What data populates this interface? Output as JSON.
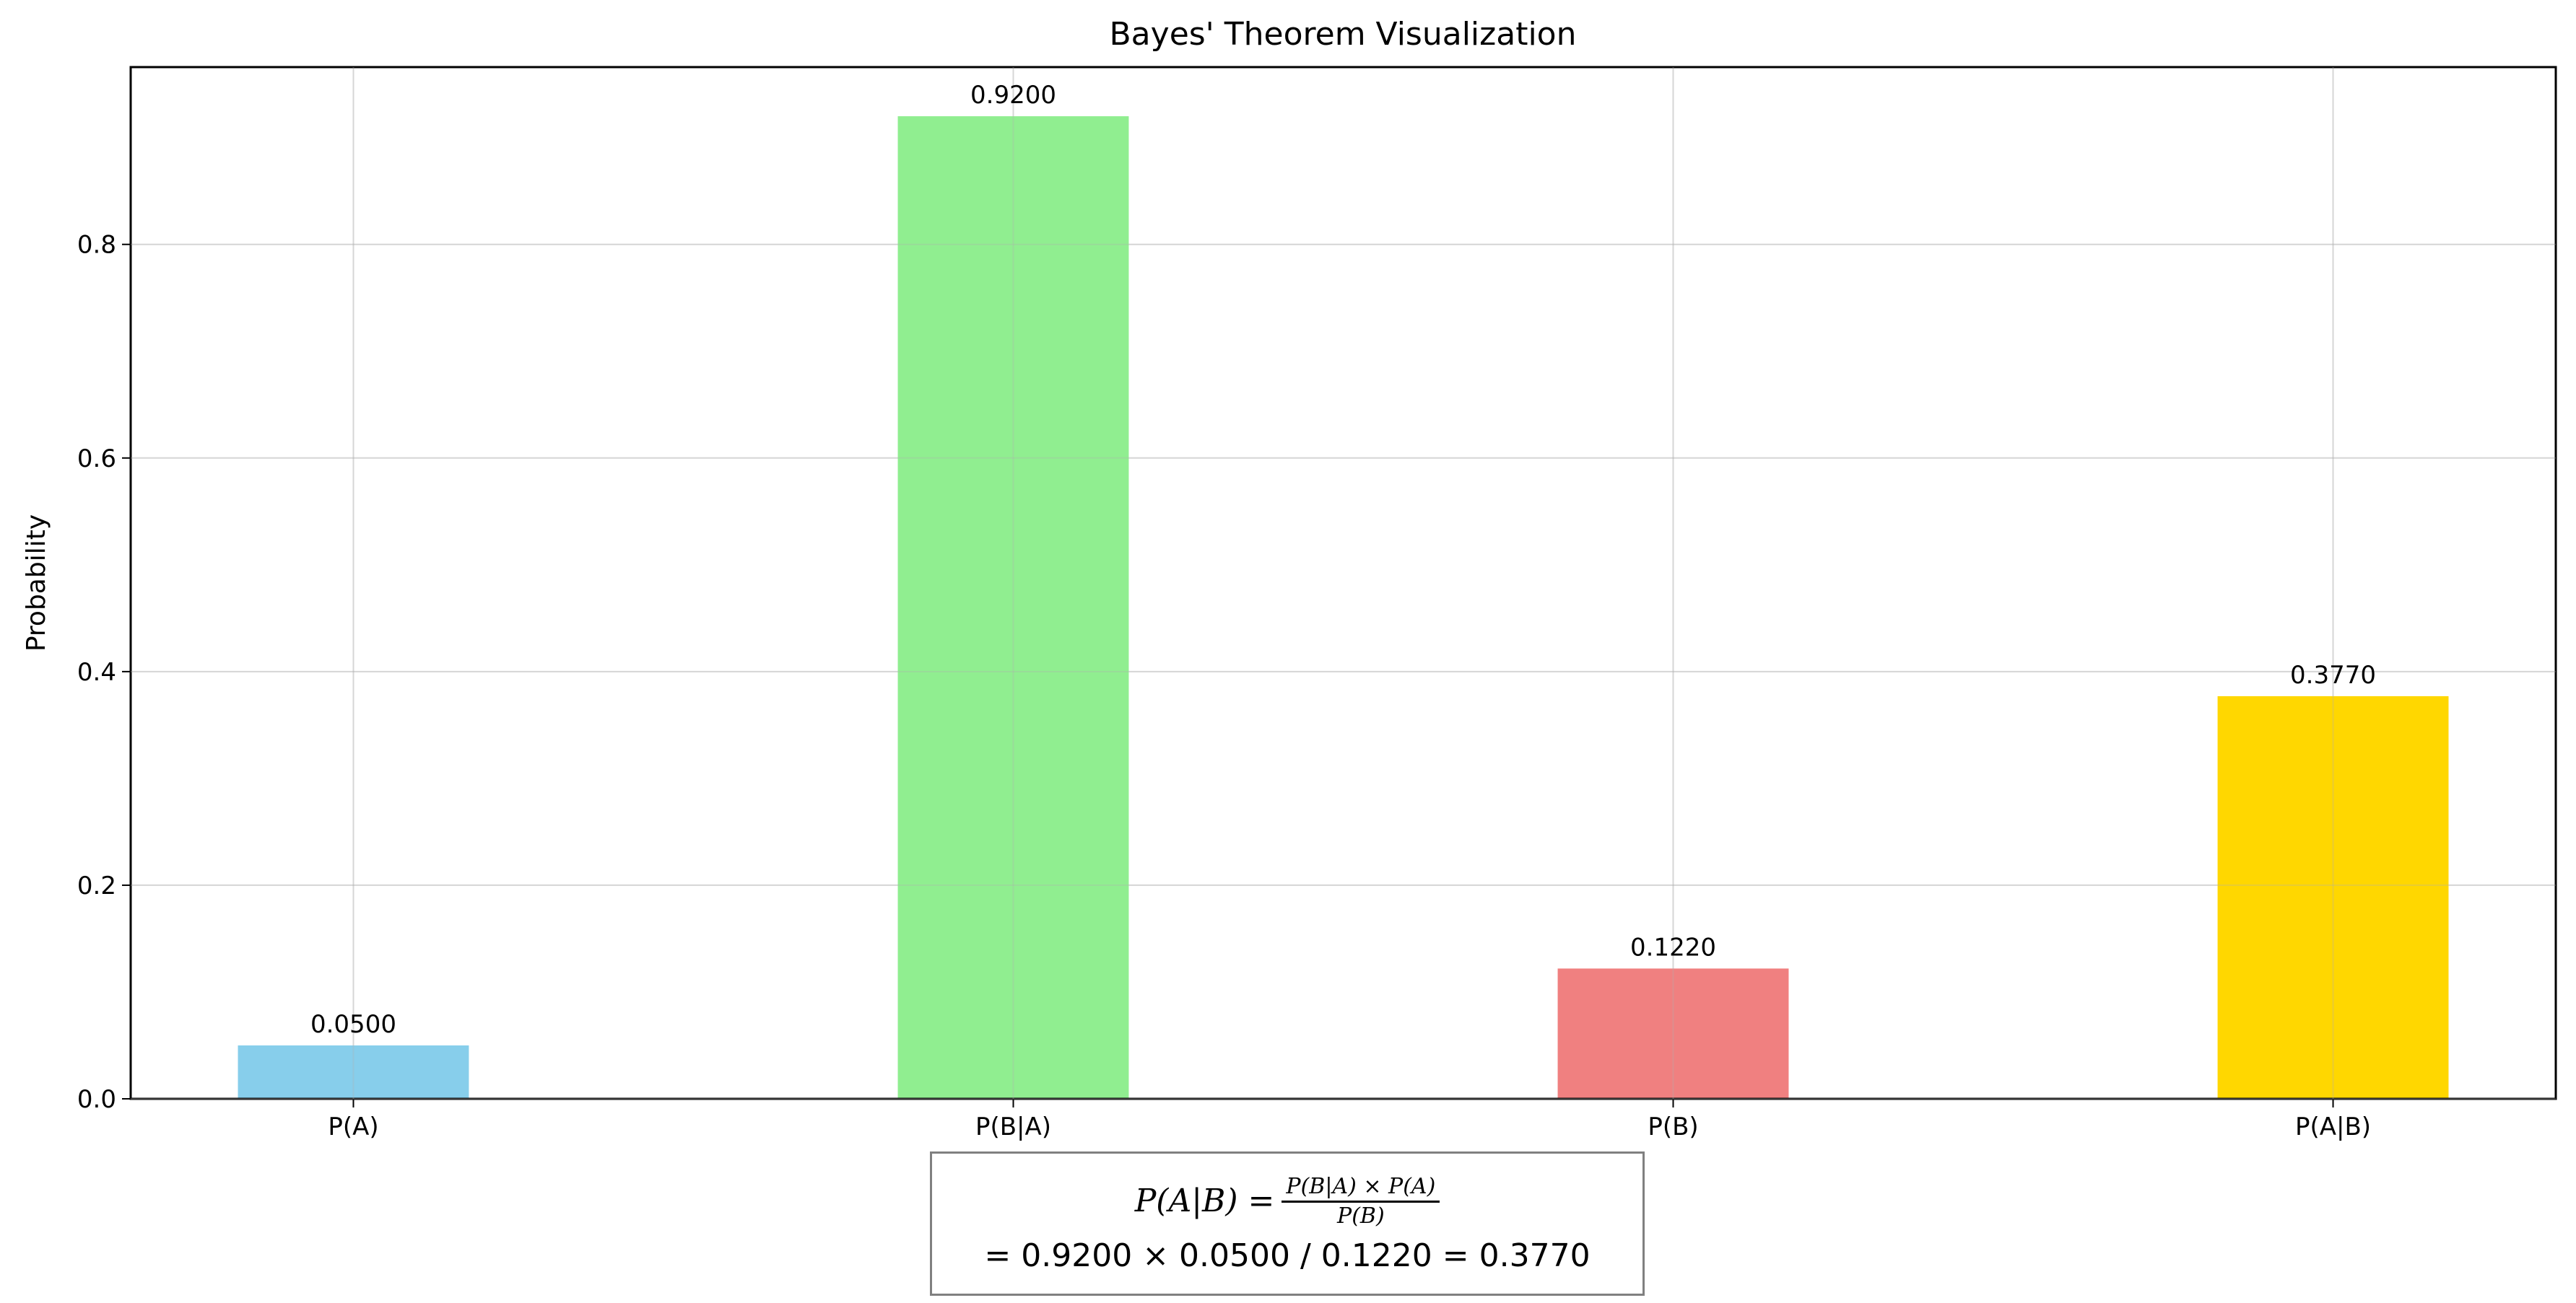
{
  "chart_data": {
    "type": "bar",
    "title": "Bayes' Theorem Visualization",
    "xlabel": "",
    "ylabel": "Probability",
    "categories": [
      "P(A)",
      "P(B|A)",
      "P(B)",
      "P(A|B)"
    ],
    "values": [
      0.05,
      0.92,
      0.122,
      0.377
    ],
    "value_labels": [
      "0.0500",
      "0.9200",
      "0.1220",
      "0.3770"
    ],
    "colors": [
      "#87CEEB",
      "#90EE90",
      "#F08080",
      "#FFD700"
    ],
    "ylim": [
      0,
      0.966
    ],
    "yticks": [
      0.0,
      0.2,
      0.4,
      0.6,
      0.8
    ],
    "ytick_labels": [
      "0.0",
      "0.2",
      "0.4",
      "0.6",
      "0.8"
    ],
    "grid": true
  },
  "formula": {
    "lhs": "P(A|B) =",
    "numerator": "P(B|A) × P(A)",
    "denominator": "P(B)",
    "line2": "= 0.9200 × 0.0500 / 0.1220 = 0.3770"
  }
}
